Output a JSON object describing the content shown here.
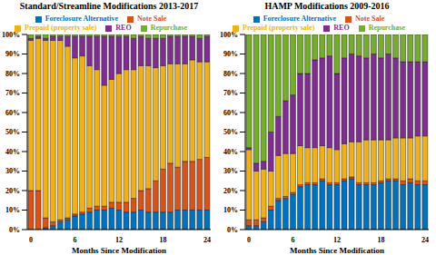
{
  "chart_data": [
    {
      "type": "bar",
      "stacked": true,
      "title": "Standard/Streamline Modifications 2013-2017",
      "x_label": "Months Since Modification",
      "categories": [
        "0",
        null,
        null,
        null,
        null,
        null,
        "6",
        null,
        null,
        null,
        null,
        null,
        "12",
        null,
        null,
        null,
        null,
        null,
        "18",
        null,
        null,
        null,
        null,
        null,
        "24"
      ],
      "series": [
        {
          "name": "Foreclosure Alternative",
          "color": "#0072BD",
          "values": [
            0,
            0,
            1,
            2,
            4,
            5,
            7,
            8,
            9,
            10,
            10,
            11,
            10,
            9,
            9,
            10,
            9,
            9,
            9,
            9,
            10,
            10,
            10,
            10,
            10
          ]
        },
        {
          "name": "Note Sale",
          "color": "#D95319",
          "values": [
            20,
            20,
            5,
            2,
            1,
            1,
            1,
            1,
            2,
            2,
            2,
            3,
            4,
            5,
            7,
            10,
            12,
            16,
            22,
            25,
            22,
            25,
            25,
            26,
            27
          ]
        },
        {
          "name": "Prepaid (property sale)",
          "color": "#EDB120",
          "values": [
            77,
            78,
            91,
            93,
            92,
            88,
            80,
            80,
            73,
            70,
            62,
            63,
            66,
            68,
            66,
            64,
            63,
            58,
            53,
            51,
            53,
            50,
            52,
            50,
            49
          ]
        },
        {
          "name": "REO",
          "color": "#7E2F8E",
          "values": [
            1,
            1,
            1,
            2,
            2,
            5,
            11,
            10,
            15,
            17,
            25,
            22,
            19,
            17,
            16,
            15,
            14,
            15,
            14,
            14,
            14,
            14,
            12,
            12,
            13
          ]
        },
        {
          "name": "Repurchase",
          "color": "#77AC30",
          "values": [
            2,
            1,
            2,
            1,
            1,
            1,
            1,
            1,
            1,
            1,
            1,
            1,
            1,
            1,
            2,
            1,
            2,
            2,
            2,
            1,
            1,
            1,
            1,
            2,
            1
          ]
        }
      ],
      "ylim": [
        0,
        100
      ],
      "yticks": [
        {
          "value": 0,
          "label": "0%"
        },
        {
          "value": 10,
          "label": "10%"
        },
        {
          "value": 20,
          "label": "20%"
        },
        {
          "value": 30,
          "label": "30%"
        },
        {
          "value": 40,
          "label": "40%"
        },
        {
          "value": 50,
          "label": "50%"
        },
        {
          "value": 60,
          "label": "60%"
        },
        {
          "value": 70,
          "label": "70%"
        },
        {
          "value": 80,
          "label": "80%"
        },
        {
          "value": 90,
          "label": "90%"
        },
        {
          "value": 100,
          "label": "100%"
        }
      ],
      "grid": false,
      "legend": "top"
    },
    {
      "type": "bar",
      "stacked": true,
      "title": "HAMP Modifications 2009-2016",
      "x_label": "Months Since Modification",
      "categories": [
        "0",
        null,
        null,
        null,
        null,
        null,
        "6",
        null,
        null,
        null,
        null,
        null,
        "12",
        null,
        null,
        null,
        null,
        null,
        "18",
        null,
        null,
        null,
        null,
        null,
        "24"
      ],
      "series": [
        {
          "name": "Foreclosure Alternative",
          "color": "#0072BD",
          "values": [
            2,
            2,
            4,
            10,
            15,
            16,
            18,
            22,
            23,
            23,
            25,
            23,
            23,
            25,
            26,
            23,
            23,
            23,
            24,
            25,
            25,
            23,
            24,
            23,
            23
          ]
        },
        {
          "name": "Note Sale",
          "color": "#D95319",
          "values": [
            3,
            3,
            2,
            2,
            1,
            1,
            1,
            1,
            1,
            1,
            1,
            1,
            1,
            1,
            1,
            1,
            1,
            1,
            1,
            1,
            1,
            2,
            2,
            2,
            2
          ]
        },
        {
          "name": "Prepaid (property sale)",
          "color": "#EDB120",
          "values": [
            36,
            25,
            25,
            18,
            22,
            22,
            20,
            20,
            18,
            18,
            17,
            18,
            17,
            18,
            18,
            21,
            22,
            22,
            21,
            20,
            21,
            22,
            21,
            23,
            23
          ]
        },
        {
          "name": "REO",
          "color": "#7E2F8E",
          "values": [
            1,
            4,
            4,
            20,
            20,
            27,
            30,
            37,
            38,
            45,
            45,
            47,
            39,
            44,
            45,
            44,
            42,
            44,
            42,
            44,
            41,
            39,
            39,
            38,
            38
          ]
        },
        {
          "name": "Repurchase",
          "color": "#77AC30",
          "values": [
            58,
            66,
            65,
            50,
            42,
            34,
            31,
            20,
            20,
            13,
            12,
            11,
            20,
            12,
            10,
            11,
            12,
            10,
            12,
            10,
            12,
            14,
            14,
            14,
            14
          ]
        }
      ],
      "ylim": [
        0,
        100
      ],
      "yticks": [
        {
          "value": 0,
          "label": "0%"
        },
        {
          "value": 10,
          "label": "10%"
        },
        {
          "value": 20,
          "label": "20%"
        },
        {
          "value": 30,
          "label": "30%"
        },
        {
          "value": 40,
          "label": "40%"
        },
        {
          "value": 50,
          "label": "50%"
        },
        {
          "value": 60,
          "label": "60%"
        },
        {
          "value": 70,
          "label": "70%"
        },
        {
          "value": 80,
          "label": "80%"
        },
        {
          "value": 90,
          "label": "90%"
        },
        {
          "value": 100,
          "label": "100%"
        }
      ],
      "grid": false,
      "legend": "top"
    }
  ]
}
